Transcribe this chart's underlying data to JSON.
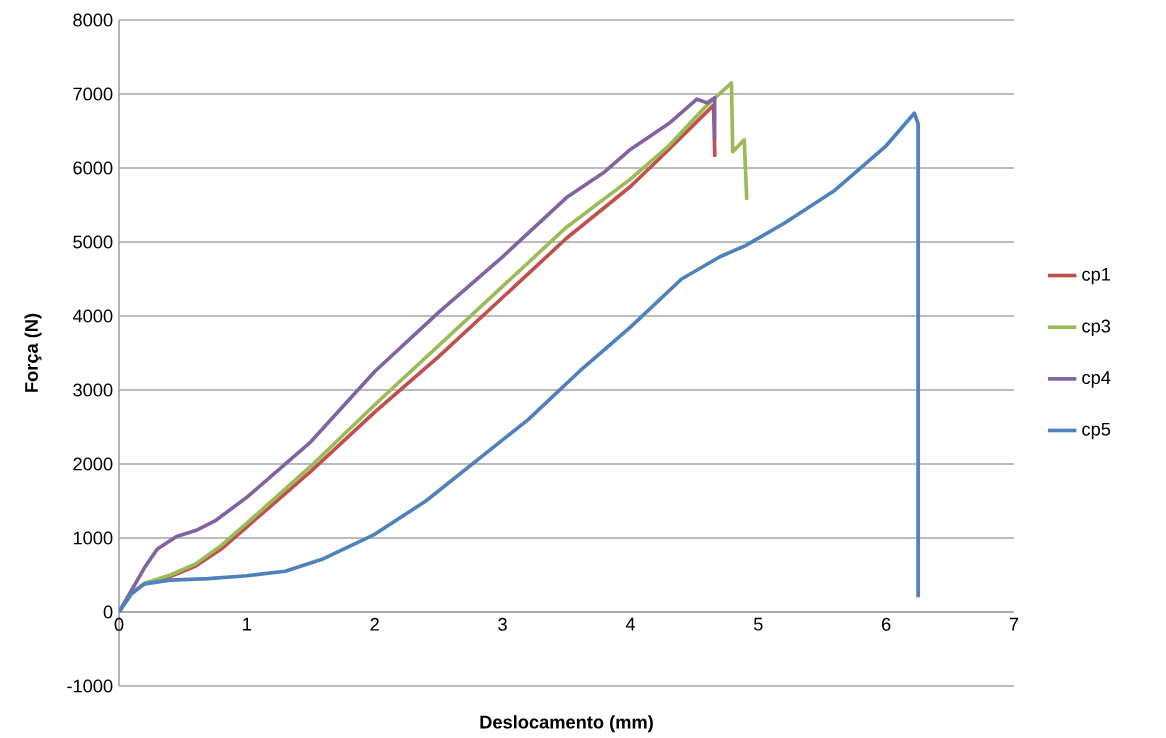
{
  "chart_data": {
    "type": "line",
    "xlabel": "Deslocamento (mm)",
    "ylabel": "Força (N)",
    "xlim": [
      0,
      7
    ],
    "xticks": [
      0,
      1,
      2,
      3,
      4,
      5,
      6,
      7
    ],
    "ylim": [
      -1000,
      8000
    ],
    "yticks": [
      -1000,
      0,
      1000,
      2000,
      3000,
      4000,
      5000,
      6000,
      7000,
      8000
    ],
    "grid": "y",
    "legend": "right",
    "marker": "none",
    "line_style": "solid",
    "series": [
      {
        "name": "cp1",
        "color": "#c0504d",
        "x": [
          0.2,
          0.4,
          0.6,
          0.8,
          1,
          1.5,
          2,
          2.5,
          3,
          3.5,
          4,
          4.3,
          4.65,
          4.66
        ],
        "values": [
          380,
          480,
          620,
          850,
          1150,
          1900,
          2700,
          3450,
          4250,
          5050,
          5750,
          6250,
          6850,
          6150
        ]
      },
      {
        "name": "cp3",
        "color": "#9bbb59",
        "x": [
          0,
          0.1,
          0.2,
          0.4,
          0.6,
          0.8,
          1,
          1.5,
          2,
          2.5,
          3,
          3.5,
          4,
          4.3,
          4.6,
          4.79,
          4.8,
          4.89,
          4.91
        ],
        "values": [
          0,
          260,
          390,
          500,
          650,
          900,
          1200,
          1970,
          2800,
          3600,
          4400,
          5200,
          5850,
          6300,
          6850,
          7150,
          6220,
          6380,
          5570
        ]
      },
      {
        "name": "cp4",
        "color": "#8064a2",
        "x": [
          0,
          0.1,
          0.2,
          0.3,
          0.45,
          0.6,
          0.75,
          1,
          1.5,
          2,
          2.5,
          3,
          3.5,
          3.8,
          4,
          4.3,
          4.52,
          4.6,
          4.66,
          4.66
        ],
        "values": [
          0,
          300,
          600,
          850,
          1020,
          1100,
          1230,
          1550,
          2300,
          3250,
          4050,
          4800,
          5600,
          5950,
          6250,
          6600,
          6930,
          6880,
          6950,
          6380
        ]
      },
      {
        "name": "cp5",
        "color": "#4f81bd",
        "x": [
          0,
          0.1,
          0.2,
          0.4,
          0.7,
          1,
          1.3,
          1.6,
          2,
          2.4,
          2.8,
          3.2,
          3.6,
          4,
          4.4,
          4.7,
          4.9,
          5.2,
          5.6,
          6,
          6.22,
          6.25,
          6.25
        ],
        "values": [
          0,
          250,
          380,
          430,
          450,
          490,
          550,
          720,
          1050,
          1500,
          2050,
          2600,
          3250,
          3850,
          4500,
          4800,
          4950,
          5250,
          5700,
          6300,
          6740,
          6600,
          200
        ]
      }
    ]
  }
}
